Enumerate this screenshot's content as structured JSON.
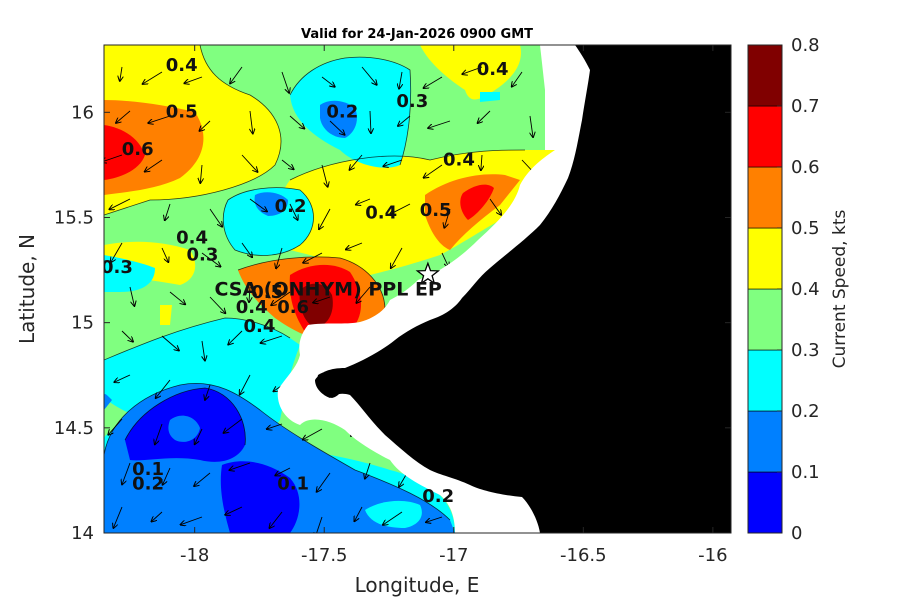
{
  "title": "Valid for 24-Jan-2026 0900 GMT",
  "colors": {
    "c0": "#0000ff",
    "c1": "#0080ff",
    "c2": "#00ffff",
    "c3": "#80ff80",
    "c4": "#ffff00",
    "c5": "#ff8000",
    "c6": "#ff0000",
    "c7": "#800000",
    "land": "#000000",
    "mask": "#ffffff"
  },
  "chart_data": {
    "type": "heatmap",
    "xlabel": "Longitude, E",
    "ylabel": "Latitude, N",
    "xlim": [
      -18.35,
      -15.93
    ],
    "ylim": [
      14.0,
      16.32
    ],
    "xticks": [
      -18,
      -17.5,
      -17,
      -16.5,
      -16
    ],
    "xtick_labels": [
      "-18",
      "-17.5",
      "-17",
      "-16.5",
      "-16"
    ],
    "yticks": [
      14,
      14.5,
      15,
      15.5,
      16
    ],
    "ytick_labels": [
      "14",
      "14.5",
      "15",
      "15.5",
      "16"
    ],
    "colorbar": {
      "label": "Current Speed,  kts",
      "levels": [
        0,
        0.1,
        0.2,
        0.3,
        0.4,
        0.5,
        0.6,
        0.7,
        0.8
      ],
      "tick_labels": [
        "0",
        "0.1",
        "0.2",
        "0.3",
        "0.4",
        "0.5",
        "0.6",
        "0.7",
        "0.8"
      ]
    },
    "site": {
      "label": "CSA (ONHYM) PPL EP",
      "lon": -17.1,
      "lat": 15.23
    },
    "contour_labels": [
      {
        "text": "0.4",
        "lon": -18.05,
        "lat": 16.22
      },
      {
        "text": "0.5",
        "lon": -18.05,
        "lat": 16.0
      },
      {
        "text": "0.6",
        "lon": -18.22,
        "lat": 15.82
      },
      {
        "text": "0.2",
        "lon": -17.43,
        "lat": 16.0
      },
      {
        "text": "0.3",
        "lon": -17.16,
        "lat": 16.05
      },
      {
        "text": "0.4",
        "lon": -16.85,
        "lat": 16.2
      },
      {
        "text": "0.4",
        "lon": -16.98,
        "lat": 15.77
      },
      {
        "text": "0.5",
        "lon": -17.07,
        "lat": 15.53
      },
      {
        "text": "0.2",
        "lon": -17.63,
        "lat": 15.55
      },
      {
        "text": "0.4",
        "lon": -17.28,
        "lat": 15.52
      },
      {
        "text": "0.4",
        "lon": -18.01,
        "lat": 15.4
      },
      {
        "text": "0.3",
        "lon": -17.97,
        "lat": 15.32
      },
      {
        "text": "0.3",
        "lon": -18.3,
        "lat": 15.26
      },
      {
        "text": "0.5",
        "lon": -17.72,
        "lat": 15.14
      },
      {
        "text": "0.6",
        "lon": -17.62,
        "lat": 15.07
      },
      {
        "text": "0.4",
        "lon": -17.78,
        "lat": 15.07
      },
      {
        "text": "0.4",
        "lon": -17.75,
        "lat": 14.98
      },
      {
        "text": "0.1",
        "lon": -18.18,
        "lat": 14.3
      },
      {
        "text": "0.2",
        "lon": -18.18,
        "lat": 14.23
      },
      {
        "text": "0.1",
        "lon": -17.62,
        "lat": 14.23
      },
      {
        "text": "0.2",
        "lon": -17.06,
        "lat": 14.17
      }
    ]
  }
}
